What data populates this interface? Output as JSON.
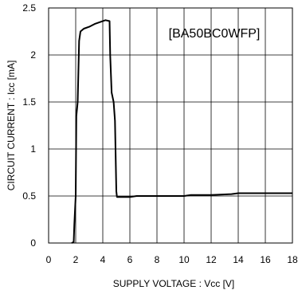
{
  "chart_data": {
    "type": "line",
    "annotation": "[BA50BC0WFP]",
    "xlabel": "SUPPLY VOLTAGE : Vcc [V]",
    "ylabel": "CIRCUIT CURRENT : Icc [mA]",
    "xlim": [
      0,
      18
    ],
    "ylim": [
      0,
      2.5
    ],
    "x_ticks": [
      "0",
      "2",
      "4",
      "6",
      "8",
      "10",
      "12",
      "14",
      "16",
      "18"
    ],
    "y_ticks": [
      "0",
      "0.5",
      "1",
      "1.5",
      "2",
      "2.5"
    ],
    "grid": true,
    "series": [
      {
        "points": [
          [
            1.7,
            0.0
          ],
          [
            1.85,
            0.01
          ],
          [
            1.9,
            0.2
          ],
          [
            2.0,
            0.5
          ],
          [
            2.05,
            1.35
          ],
          [
            2.15,
            1.5
          ],
          [
            2.25,
            2.15
          ],
          [
            2.35,
            2.25
          ],
          [
            2.6,
            2.28
          ],
          [
            3.0,
            2.3
          ],
          [
            3.4,
            2.33
          ],
          [
            3.8,
            2.35
          ],
          [
            4.2,
            2.37
          ],
          [
            4.5,
            2.36
          ],
          [
            4.55,
            2.0
          ],
          [
            4.65,
            1.6
          ],
          [
            4.8,
            1.5
          ],
          [
            4.9,
            1.3
          ],
          [
            5.0,
            0.55
          ],
          [
            5.05,
            0.49
          ],
          [
            6.0,
            0.49
          ],
          [
            6.5,
            0.5
          ],
          [
            8.0,
            0.5
          ],
          [
            9.5,
            0.5
          ],
          [
            10.0,
            0.5
          ],
          [
            10.5,
            0.51
          ],
          [
            12.0,
            0.51
          ],
          [
            13.5,
            0.52
          ],
          [
            14.0,
            0.53
          ],
          [
            16.0,
            0.53
          ],
          [
            18.0,
            0.53
          ]
        ],
        "color": "#000000"
      }
    ]
  }
}
